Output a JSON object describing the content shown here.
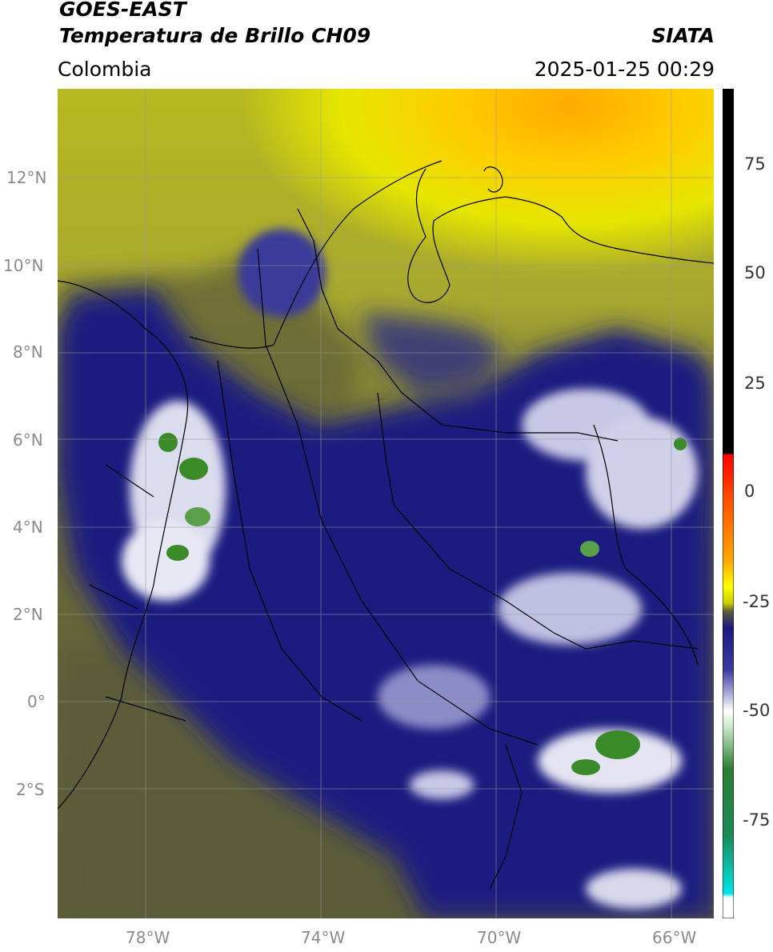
{
  "header": {
    "title_line1": "GOES-EAST",
    "title_line2": "Temperatura de Brillo CH09",
    "brand": "SIATA",
    "region": "Colombia",
    "datetime": "2025-01-25 00:29"
  },
  "map": {
    "lat_labels": [
      "12°N",
      "10°N",
      "8°N",
      "6°N",
      "4°N",
      "2°N",
      "0°",
      "2°S"
    ],
    "lon_labels": [
      "78°W",
      "74°W",
      "70°W",
      "66°W"
    ],
    "colors": {
      "deep_blue": "#1a1a80",
      "olive": "#5c5c3a",
      "yellow": "#e6e600",
      "orange": "#ffaa00",
      "white_cloud": "#e8e8f5",
      "green_core": "#3a8a2a"
    }
  },
  "colorbar": {
    "tick_labels": [
      "75",
      "50",
      "25",
      "0",
      "-25",
      "-50",
      "-75"
    ],
    "colors": [
      "#000000",
      "#ff0000",
      "#ff8800",
      "#ffff00",
      "#5c5c3a",
      "#1a1a80",
      "#ffffff",
      "#2e7d32",
      "#00e5e5"
    ]
  }
}
